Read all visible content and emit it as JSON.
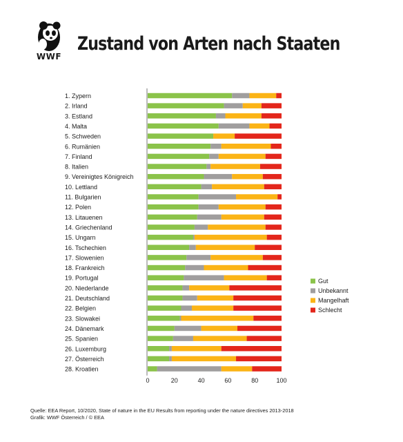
{
  "header": {
    "title": "Zustand von Arten nach Staaten",
    "logo_text": "WWF",
    "logo_icon": "panda-logo-icon"
  },
  "footer": {
    "source": "Quelle: EEA Report, 10/2020, State of nature in the EU Results from reporting under the nature directives 2013-2018",
    "credit": "Grafik: WWF Österreich / © EEA"
  },
  "chart_data": {
    "type": "bar",
    "orientation": "horizontal",
    "stacked": true,
    "title": "Zustand von Arten nach Staaten",
    "xlim": [
      0,
      100
    ],
    "xticks": [
      "0",
      "20",
      "40",
      "60",
      "80",
      "100"
    ],
    "legend_position": "right",
    "categories": [
      "1. Zypern",
      "2. Irland",
      "3. Estland",
      "4. Malta",
      "5. Schweden",
      "6. Rumänien",
      "7. Finland",
      "8. Italien",
      "9. Vereinigtes Königreich",
      "10. Lettland",
      "11. Bulgarien",
      "12. Polen",
      "13. Litauenen",
      "14. Griechenland",
      "15. Ungarn",
      "16. Tschechien",
      "17. Slowenien",
      "18. Frankreich",
      "19. Portugal",
      "20. Niederlande",
      "21. Deutschland",
      "22. Belgien",
      "23. Slowakei",
      "24. Dänemark",
      "25. Spanien",
      "26. Luxemburg",
      "27. Österreich",
      "28. Kroatien"
    ],
    "series": [
      {
        "name": "Gut",
        "color": "#8bc34a",
        "values": [
          63,
          57,
          51,
          53,
          49,
          47,
          46,
          44,
          42,
          40,
          38,
          38,
          37,
          35,
          34,
          31,
          29,
          28,
          27,
          26,
          26,
          25,
          24,
          20,
          19,
          16,
          16,
          7
        ]
      },
      {
        "name": "Unbekannt",
        "color": "#a09e9e",
        "values": [
          13,
          14,
          7,
          23,
          0,
          8,
          7,
          3,
          21,
          8,
          28,
          15,
          18,
          10,
          1,
          5,
          18,
          14,
          30,
          5,
          11,
          8,
          1,
          20,
          15,
          2,
          2,
          48
        ]
      },
      {
        "name": "Mangelhaft",
        "color": "#fbb416",
        "values": [
          20,
          14,
          27,
          15,
          16,
          37,
          35,
          37,
          23,
          39,
          31,
          35,
          32,
          43,
          54,
          44,
          39,
          33,
          32,
          30,
          27,
          31,
          54,
          27,
          40,
          37,
          48,
          23
        ]
      },
      {
        "name": "Schlecht",
        "color": "#e3261b",
        "values": [
          4,
          15,
          15,
          9,
          35,
          8,
          12,
          16,
          14,
          13,
          3,
          12,
          13,
          12,
          11,
          20,
          14,
          25,
          11,
          39,
          36,
          36,
          21,
          33,
          26,
          45,
          34,
          22
        ]
      }
    ]
  }
}
